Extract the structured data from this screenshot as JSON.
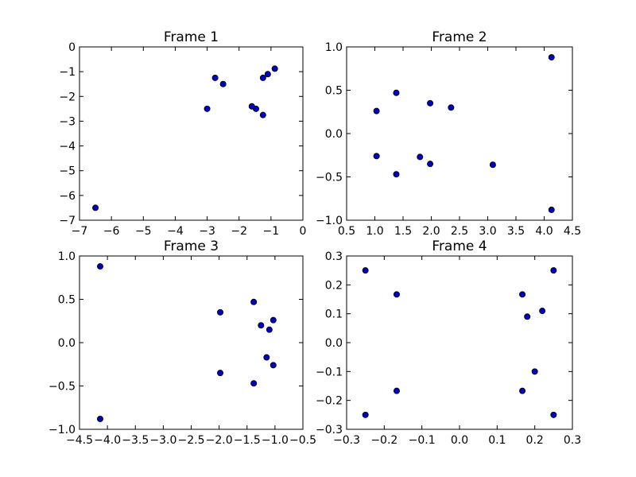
{
  "chart_data": [
    {
      "type": "scatter",
      "title": "Frame 1",
      "xlim": [
        -7,
        0
      ],
      "ylim": [
        -7,
        0
      ],
      "x_ticks": [
        -7,
        -6,
        -5,
        -4,
        -3,
        -2,
        -1,
        0
      ],
      "y_ticks": [
        0,
        -1,
        -2,
        -3,
        -4,
        -5,
        -6,
        -7
      ],
      "x_tick_labels": [
        "−7",
        "−6",
        "−5",
        "−4",
        "−3",
        "−2",
        "−1",
        "0"
      ],
      "y_tick_labels": [
        "0",
        "−1",
        "−2",
        "−3",
        "−4",
        "−5",
        "−6",
        "−7"
      ],
      "points": [
        {
          "x": -6.5,
          "y": -6.5
        },
        {
          "x": -3.0,
          "y": -2.5
        },
        {
          "x": -2.75,
          "y": -1.25
        },
        {
          "x": -2.5,
          "y": -1.5
        },
        {
          "x": -1.6,
          "y": -2.4
        },
        {
          "x": -1.47,
          "y": -2.5
        },
        {
          "x": -1.25,
          "y": -2.75
        },
        {
          "x": -1.25,
          "y": -1.25
        },
        {
          "x": -1.1,
          "y": -1.1
        },
        {
          "x": -0.88,
          "y": -0.88
        }
      ]
    },
    {
      "type": "scatter",
      "title": "Frame 2",
      "xlim": [
        0.5,
        4.5
      ],
      "ylim": [
        -1.0,
        1.0
      ],
      "x_ticks": [
        0.5,
        1.0,
        1.5,
        2.0,
        2.5,
        3.0,
        3.5,
        4.0,
        4.5
      ],
      "y_ticks": [
        1.0,
        0.5,
        0.0,
        -0.5,
        -1.0
      ],
      "x_tick_labels": [
        "0.5",
        "1.0",
        "1.5",
        "2.0",
        "2.5",
        "3.0",
        "3.5",
        "4.0",
        "4.5"
      ],
      "y_tick_labels": [
        "1.0",
        "0.5",
        "0.0",
        "−0.5",
        "−1.0"
      ],
      "points": [
        {
          "x": 1.03,
          "y": 0.26
        },
        {
          "x": 1.03,
          "y": -0.26
        },
        {
          "x": 1.38,
          "y": 0.47
        },
        {
          "x": 1.38,
          "y": -0.47
        },
        {
          "x": 1.8,
          "y": -0.27
        },
        {
          "x": 1.98,
          "y": 0.35
        },
        {
          "x": 1.98,
          "y": -0.35
        },
        {
          "x": 2.35,
          "y": 0.3
        },
        {
          "x": 3.09,
          "y": -0.36
        },
        {
          "x": 4.13,
          "y": 0.88
        },
        {
          "x": 4.13,
          "y": -0.88
        }
      ]
    },
    {
      "type": "scatter",
      "title": "Frame 3",
      "xlim": [
        -4.5,
        -0.5
      ],
      "ylim": [
        -1.0,
        1.0
      ],
      "x_ticks": [
        -4.5,
        -4.0,
        -3.5,
        -3.0,
        -2.5,
        -2.0,
        -1.5,
        -1.0,
        -0.5
      ],
      "y_ticks": [
        1.0,
        0.5,
        0.0,
        -0.5,
        -1.0
      ],
      "x_tick_labels": [
        "−4.5",
        "−4.0",
        "−3.5",
        "−3.0",
        "−2.5",
        "−2.0",
        "−1.5",
        "−1.0",
        "−0.5"
      ],
      "y_tick_labels": [
        "1.0",
        "0.5",
        "0.0",
        "−0.5",
        "−1.0"
      ],
      "points": [
        {
          "x": -4.13,
          "y": 0.88
        },
        {
          "x": -4.13,
          "y": -0.88
        },
        {
          "x": -1.98,
          "y": 0.35
        },
        {
          "x": -1.98,
          "y": -0.35
        },
        {
          "x": -1.38,
          "y": 0.47
        },
        {
          "x": -1.38,
          "y": -0.47
        },
        {
          "x": -1.25,
          "y": 0.2
        },
        {
          "x": -1.1,
          "y": 0.15
        },
        {
          "x": -1.15,
          "y": -0.17
        },
        {
          "x": -1.03,
          "y": 0.26
        },
        {
          "x": -1.03,
          "y": -0.26
        }
      ]
    },
    {
      "type": "scatter",
      "title": "Frame 4",
      "xlim": [
        -0.3,
        0.3
      ],
      "ylim": [
        -0.3,
        0.3
      ],
      "x_ticks": [
        -0.3,
        -0.2,
        -0.1,
        0.0,
        0.1,
        0.2,
        0.3
      ],
      "y_ticks": [
        0.3,
        0.2,
        0.1,
        0.0,
        -0.1,
        -0.2,
        -0.3
      ],
      "x_tick_labels": [
        "−0.3",
        "−0.2",
        "−0.1",
        "0.0",
        "0.1",
        "0.2",
        "0.3"
      ],
      "y_tick_labels": [
        "0.3",
        "0.2",
        "0.1",
        "0.0",
        "−0.1",
        "−0.2",
        "−0.3"
      ],
      "points": [
        {
          "x": -0.25,
          "y": 0.25
        },
        {
          "x": -0.25,
          "y": -0.25
        },
        {
          "x": -0.167,
          "y": 0.167
        },
        {
          "x": -0.167,
          "y": -0.167
        },
        {
          "x": 0.167,
          "y": 0.167
        },
        {
          "x": 0.167,
          "y": -0.167
        },
        {
          "x": 0.18,
          "y": 0.09
        },
        {
          "x": 0.2,
          "y": -0.1
        },
        {
          "x": 0.22,
          "y": 0.11
        },
        {
          "x": 0.25,
          "y": 0.25
        },
        {
          "x": 0.25,
          "y": -0.25
        }
      ]
    }
  ],
  "colors": {
    "marker_fill": "#0000bf",
    "marker_edge": "#000000",
    "axes": "#000000",
    "background": "#ffffff"
  }
}
